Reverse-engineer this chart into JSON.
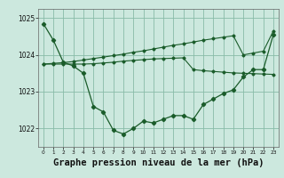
{
  "title": "Graphe pression niveau de la mer (hPa)",
  "bg_color": "#cce8de",
  "grid_color": "#88bba8",
  "line_color": "#1a5c2a",
  "hours": [
    0,
    1,
    2,
    3,
    4,
    5,
    6,
    7,
    8,
    9,
    10,
    11,
    12,
    13,
    14,
    15,
    16,
    17,
    18,
    19,
    20,
    21,
    22,
    23
  ],
  "curve_main": [
    1024.85,
    1024.4,
    1023.8,
    1023.7,
    1023.5,
    1022.6,
    1022.45,
    1021.95,
    1021.85,
    1022.0,
    1022.2,
    1022.15,
    1022.25,
    1022.35,
    1022.35,
    1022.25,
    1022.65,
    1022.8,
    1022.95,
    1023.05,
    1023.4,
    1023.6,
    1023.6,
    1024.55
  ],
  "curve_top": [
    1023.75,
    1023.77,
    1023.79,
    1023.82,
    1023.86,
    1023.9,
    1023.94,
    1023.98,
    1024.02,
    1024.06,
    1024.1,
    1024.14,
    1024.18,
    1024.22,
    1024.26,
    1024.3,
    1024.35,
    1024.4,
    1024.45,
    1024.5,
    1024.0,
    1024.05,
    1024.1,
    1024.65
  ],
  "curve_flat": [
    1023.75,
    1023.75,
    1023.75,
    1023.75,
    1023.75,
    1023.78,
    1023.8,
    1023.82,
    1023.84,
    1023.86,
    1023.88,
    1023.9,
    1023.92,
    1023.93,
    1023.94,
    1023.6,
    1023.57,
    1023.55,
    1023.53,
    1023.52,
    1023.5,
    1023.5,
    1023.5,
    1023.5
  ],
  "ylim_lo": 1021.5,
  "ylim_hi": 1025.25,
  "ytick_labels": [
    "1022",
    "1023",
    "1024",
    "1025"
  ],
  "ytick_vals": [
    1022,
    1023,
    1024,
    1025
  ]
}
